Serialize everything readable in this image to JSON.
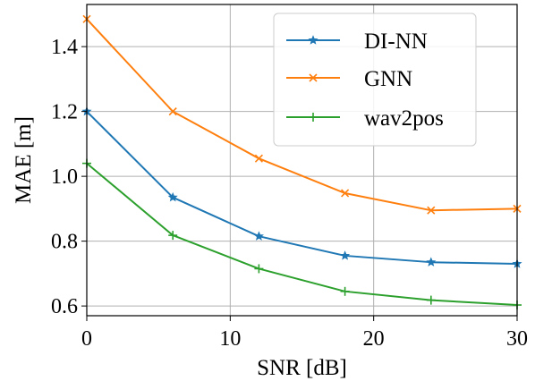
{
  "chart_data": {
    "type": "line",
    "xlabel": "SNR [dB]",
    "ylabel": "MAE [m]",
    "xlim": [
      0,
      30
    ],
    "ylim": [
      0.57,
      1.53
    ],
    "xticks": [
      0,
      10,
      20,
      30
    ],
    "xtick_labels": [
      "0",
      "10",
      "20",
      "30"
    ],
    "yticks": [
      0.6,
      0.8,
      1.0,
      1.2,
      1.4
    ],
    "ytick_labels": [
      "0.6",
      "0.8",
      "1.0",
      "1.2",
      "1.4"
    ],
    "grid": true,
    "legend_position": "top-right",
    "x": [
      0,
      6,
      12,
      18,
      24,
      30
    ],
    "series": [
      {
        "name": "DI-NN",
        "values": [
          1.2,
          0.935,
          0.815,
          0.755,
          0.735,
          0.73
        ],
        "color": "#1f77b4",
        "marker": "star"
      },
      {
        "name": "GNN",
        "values": [
          1.485,
          1.2,
          1.055,
          0.948,
          0.895,
          0.9
        ],
        "color": "#ff7f0e",
        "marker": "x"
      },
      {
        "name": "wav2pos",
        "values": [
          1.04,
          0.818,
          0.715,
          0.645,
          0.618,
          0.603
        ],
        "color": "#2ca02c",
        "marker": "plus"
      }
    ]
  }
}
